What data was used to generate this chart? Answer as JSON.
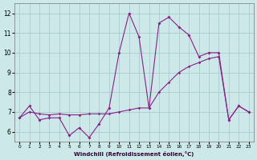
{
  "xlabel": "Windchill (Refroidissement éolien,°C)",
  "background_color": "#cce8e8",
  "grid_color": "#aacccc",
  "line_color": "#882288",
  "x_hours": [
    0,
    1,
    2,
    3,
    4,
    5,
    6,
    7,
    8,
    9,
    10,
    11,
    12,
    13,
    14,
    15,
    16,
    17,
    18,
    19,
    20,
    21,
    22,
    23
  ],
  "windchill": [
    6.7,
    7.3,
    6.6,
    6.7,
    6.7,
    5.8,
    6.2,
    5.7,
    6.4,
    7.2,
    10.0,
    12.0,
    10.8,
    7.2,
    11.5,
    11.8,
    11.3,
    10.9,
    9.8,
    10.0,
    10.0,
    6.6,
    7.3,
    7.0
  ],
  "linear": [
    6.7,
    7.0,
    6.9,
    6.85,
    6.9,
    6.85,
    6.85,
    6.9,
    6.9,
    6.9,
    7.0,
    7.1,
    7.2,
    7.2,
    8.0,
    8.5,
    9.0,
    9.3,
    9.5,
    9.7,
    9.8,
    6.6,
    7.3,
    7.0
  ],
  "ylim": [
    5.5,
    12.5
  ],
  "yticks": [
    6,
    7,
    8,
    9,
    10,
    11,
    12
  ],
  "xlim": [
    -0.5,
    23.5
  ]
}
